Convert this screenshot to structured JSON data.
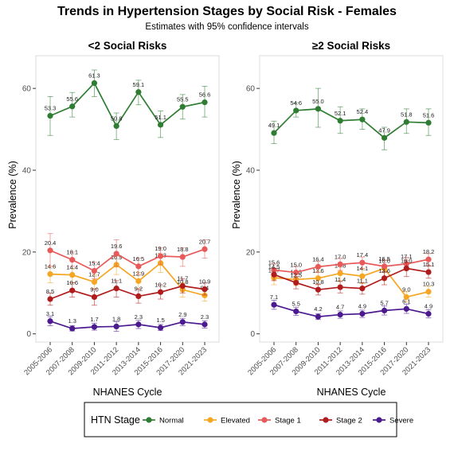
{
  "title": "Trends in Hypertension Stages by Social Risk - Females",
  "subtitle": "Estimates with 95% confidence intervals",
  "xlabel": "NHANES Cycle",
  "ylabel": "Prevalence (%)",
  "legend": {
    "title": "HTN Stage",
    "position": "bottom",
    "items": [
      "Normal",
      "Elevated",
      "Stage 1",
      "Stage 2",
      "Severe"
    ]
  },
  "colors": {
    "Normal": "#2e7d32",
    "Elevated": "#f5a623",
    "Stage 1": "#e85a5a",
    "Stage 2": "#b01c1c",
    "Severe": "#4b1a8f"
  },
  "chart_data": [
    {
      "type": "line",
      "title": "<2 Social Risks",
      "categories": [
        "2005-2006",
        "2007-2008",
        "2009-2010",
        "2011-2012",
        "2013-2014",
        "2015-2016",
        "2017-2020",
        "2021-2023"
      ],
      "ylim": [
        -2,
        68
      ],
      "yticks": [
        0,
        20,
        40,
        60
      ],
      "grid": false,
      "series": [
        {
          "name": "Normal",
          "values": [
            53.3,
            55.6,
            61.3,
            50.8,
            59.1,
            51.1,
            55.5,
            56.6
          ],
          "lower": [
            48.5,
            53,
            58,
            47.5,
            56,
            48,
            52.5,
            53
          ],
          "upper": [
            58,
            59,
            64.5,
            54,
            62,
            54.5,
            58.5,
            60.5
          ]
        },
        {
          "name": "Elevated",
          "values": [
            14.6,
            14.4,
            12.7,
            16.9,
            12.9,
            17.3,
            10.8,
            9.4
          ],
          "lower": [
            12.5,
            12.5,
            11,
            14.5,
            11,
            15,
            9,
            8
          ],
          "upper": [
            16.5,
            16,
            14.5,
            19,
            15,
            19.5,
            12.5,
            11
          ]
        },
        {
          "name": "Stage 1",
          "values": [
            20.4,
            18.1,
            15.4,
            19.6,
            16.5,
            19.0,
            18.8,
            20.7
          ],
          "lower": [
            16.5,
            16.5,
            13.5,
            16.5,
            14.5,
            17,
            16.5,
            18.5
          ],
          "upper": [
            24.5,
            20,
            17.5,
            23,
            18.5,
            21,
            21,
            23
          ]
        },
        {
          "name": "Stage 2",
          "values": [
            8.5,
            10.6,
            9.0,
            11.1,
            9.2,
            10.2,
            11.7,
            10.9
          ],
          "lower": [
            7,
            9,
            7,
            9,
            7.5,
            8.5,
            10,
            9.5
          ],
          "upper": [
            10,
            12.5,
            11,
            13,
            11,
            12,
            13.5,
            12.5
          ]
        },
        {
          "name": "Severe",
          "values": [
            3.1,
            1.3,
            1.7,
            1.8,
            2.3,
            1.5,
            2.9,
            2.3
          ],
          "lower": [
            2,
            0.7,
            0.9,
            0.6,
            1.3,
            0.8,
            2,
            1.4
          ],
          "upper": [
            4.2,
            2,
            2.6,
            3,
            3.3,
            2.3,
            3.8,
            3.2
          ]
        }
      ]
    },
    {
      "type": "line",
      "title": "≥2 Social Risks",
      "categories": [
        "2005-2006",
        "2007-2008",
        "2009-2010",
        "2011-2012",
        "2013-2014",
        "2015-2016",
        "2017-2020",
        "2021-2023"
      ],
      "ylim": [
        -2,
        68
      ],
      "yticks": [
        0,
        20,
        40,
        60
      ],
      "grid": false,
      "series": [
        {
          "name": "Normal",
          "values": [
            49.1,
            54.6,
            55.0,
            52.1,
            52.4,
            47.9,
            51.8,
            51.6
          ],
          "lower": [
            46.5,
            53,
            50.5,
            49,
            50,
            45,
            49,
            48.5
          ],
          "upper": [
            52,
            56.5,
            60,
            55.5,
            55,
            50.5,
            55,
            55
          ]
        },
        {
          "name": "Elevated",
          "values": [
            13.7,
            13.3,
            13.6,
            14.8,
            14.1,
            16.0,
            9.0,
            10.3
          ],
          "lower": [
            12,
            11.8,
            12,
            13,
            12.3,
            14,
            7.8,
            9
          ],
          "upper": [
            15.5,
            14.8,
            15.3,
            16.6,
            15.9,
            18,
            10.3,
            11.6
          ]
        },
        {
          "name": "Stage 1",
          "values": [
            15.6,
            15.0,
            16.4,
            17.0,
            17.4,
            16.5,
            17.1,
            18.2
          ],
          "lower": [
            14,
            13.5,
            15,
            15.5,
            16,
            15,
            15.5,
            16.8
          ],
          "upper": [
            17.2,
            16.5,
            17.8,
            18.5,
            18.8,
            18,
            18.7,
            19.6
          ]
        },
        {
          "name": "Stage 2",
          "values": [
            14.5,
            12.5,
            10.8,
            11.4,
            11.1,
            13.6,
            16.0,
            15.1
          ],
          "lower": [
            13,
            11,
            9.5,
            10,
            9.7,
            12,
            14,
            13.6
          ],
          "upper": [
            16,
            14,
            12.1,
            12.8,
            12.5,
            15.2,
            18,
            16.6
          ]
        },
        {
          "name": "Severe",
          "values": [
            7.1,
            5.5,
            4.2,
            4.7,
            4.9,
            5.7,
            6.1,
            4.9
          ],
          "lower": [
            6,
            4.5,
            3.5,
            3.8,
            4,
            4.6,
            5,
            3.9
          ],
          "upper": [
            8.2,
            6.5,
            4.9,
            5.6,
            5.8,
            6.8,
            7.2,
            5.9
          ]
        }
      ]
    }
  ]
}
